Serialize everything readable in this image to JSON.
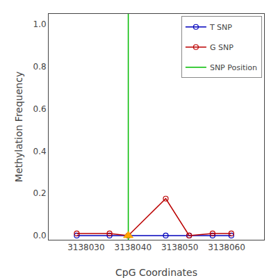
{
  "chart_data": {
    "type": "line",
    "xlabel": "CpG Coordinates",
    "ylabel": "Methylation Frequency",
    "series": [
      {
        "name": "T SNP",
        "type": "line",
        "color": "#0000BB",
        "marker": "circle-open",
        "x": [
          3138028,
          3138035,
          3138039,
          3138047,
          3138052,
          3138057,
          3138061
        ],
        "values": [
          0.0,
          0.0,
          0.0,
          0.0,
          0.0,
          0.0,
          0.0
        ]
      },
      {
        "name": "G SNP",
        "type": "line",
        "color": "#BB0000",
        "marker": "circle-open",
        "x": [
          3138028,
          3138035,
          3138039,
          3138047,
          3138052,
          3138057,
          3138061
        ],
        "values": [
          0.01,
          0.01,
          0.0,
          0.175,
          0.0,
          0.01,
          0.01
        ]
      },
      {
        "name": "SNP Position",
        "type": "vline",
        "color": "#00BB00",
        "x": [
          3138039
        ]
      }
    ],
    "snp_marker": {
      "x": 3138039,
      "y": 0.0,
      "color": "#FFA500",
      "marker": "triangle-up"
    },
    "xlim": [
      3138022,
      3138068
    ],
    "ylim": [
      -0.02,
      1.05
    ],
    "xticks": [
      3138030,
      3138040,
      3138050,
      3138060
    ],
    "yticks": [
      {
        "value": 0.0,
        "label": "0.0"
      },
      0.2,
      0.4,
      0.6,
      0.8,
      {
        "value": 1.0,
        "label": "1.0"
      }
    ],
    "grid": false,
    "legend": "upper right"
  }
}
